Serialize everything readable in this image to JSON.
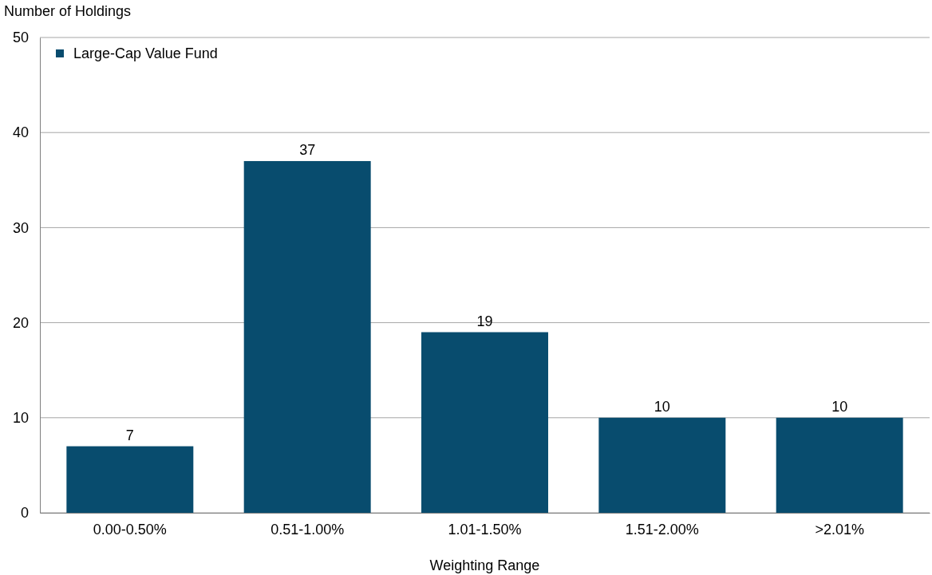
{
  "chart_data": {
    "type": "bar",
    "xlabel": "Weighting Range",
    "ylabel": "Number of Holdings",
    "categories": [
      "0.00-0.50%",
      "0.51-1.00%",
      "1.01-1.50%",
      "1.51-2.00%",
      ">2.01%"
    ],
    "series": [
      {
        "name": "Large-Cap Value Fund",
        "color": "#084c6e",
        "values": [
          7,
          37,
          19,
          10,
          10
        ]
      }
    ],
    "ylim": [
      0,
      50
    ],
    "yticks": [
      0,
      10,
      20,
      30,
      40,
      50
    ],
    "grid": "y",
    "legend": "top left",
    "data_labels": true
  }
}
